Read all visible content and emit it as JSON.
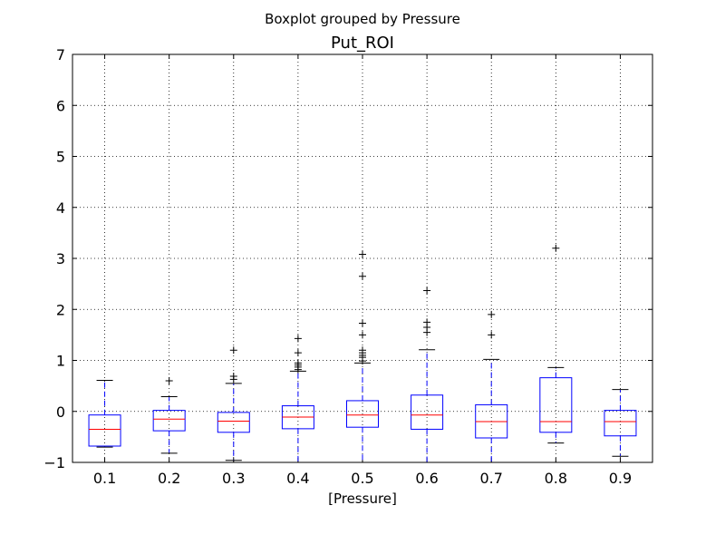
{
  "figure": {
    "suptitle": "Boxplot grouped by Pressure"
  },
  "chart_data": {
    "type": "box",
    "title": "Put_ROI",
    "xlabel": "[Pressure]",
    "ylabel": "",
    "ylim": [
      -1,
      7
    ],
    "yticks": [
      "−1",
      "0",
      "1",
      "2",
      "3",
      "4",
      "5",
      "6",
      "7"
    ],
    "ytick_values": [
      -1,
      0,
      1,
      2,
      3,
      4,
      5,
      6,
      7
    ],
    "categories": [
      "0.1",
      "0.2",
      "0.3",
      "0.4",
      "0.5",
      "0.6",
      "0.7",
      "0.8",
      "0.9"
    ],
    "grid": true,
    "colors": {
      "box": "#0000ff",
      "median": "#ff0000",
      "whisker": "#0000ff",
      "cap": "#000000",
      "flier": "#000000",
      "grid": "#000000"
    },
    "boxes": [
      {
        "category": "0.1",
        "whislo": -0.7,
        "q1": -0.68,
        "med": -0.35,
        "q3": -0.07,
        "whishi": 0.61,
        "fliers": []
      },
      {
        "category": "0.2",
        "whislo": -0.82,
        "q1": -0.38,
        "med": -0.15,
        "q3": 0.02,
        "whishi": 0.29,
        "fliers": [
          0.6
        ]
      },
      {
        "category": "0.3",
        "whislo": -0.96,
        "q1": -0.41,
        "med": -0.19,
        "q3": -0.02,
        "whishi": 0.55,
        "fliers": [
          0.63,
          0.69,
          1.2
        ]
      },
      {
        "category": "0.4",
        "whislo": -1.0,
        "q1": -0.34,
        "med": -0.11,
        "q3": 0.11,
        "whishi": 0.79,
        "fliers": [
          0.82,
          0.87,
          0.91,
          0.95,
          1.15,
          1.43
        ]
      },
      {
        "category": "0.5",
        "whislo": -1.0,
        "q1": -0.31,
        "med": -0.07,
        "q3": 0.21,
        "whishi": 0.95,
        "fliers": [
          0.99,
          1.06,
          1.1,
          1.15,
          1.2,
          1.5,
          1.73,
          2.65,
          3.08
        ]
      },
      {
        "category": "0.6",
        "whislo": -1.0,
        "q1": -0.35,
        "med": -0.07,
        "q3": 0.32,
        "whishi": 1.21,
        "fliers": [
          1.55,
          1.65,
          1.75,
          2.37
        ]
      },
      {
        "category": "0.7",
        "whislo": -1.0,
        "q1": -0.52,
        "med": -0.2,
        "q3": 0.13,
        "whishi": 1.02,
        "fliers": [
          1.5,
          1.9
        ]
      },
      {
        "category": "0.8",
        "whislo": -0.62,
        "q1": -0.41,
        "med": -0.2,
        "q3": 0.66,
        "whishi": 0.86,
        "fliers": [
          3.2
        ]
      },
      {
        "category": "0.9",
        "whislo": -0.88,
        "q1": -0.48,
        "med": -0.2,
        "q3": 0.02,
        "whishi": 0.43,
        "fliers": []
      }
    ]
  }
}
